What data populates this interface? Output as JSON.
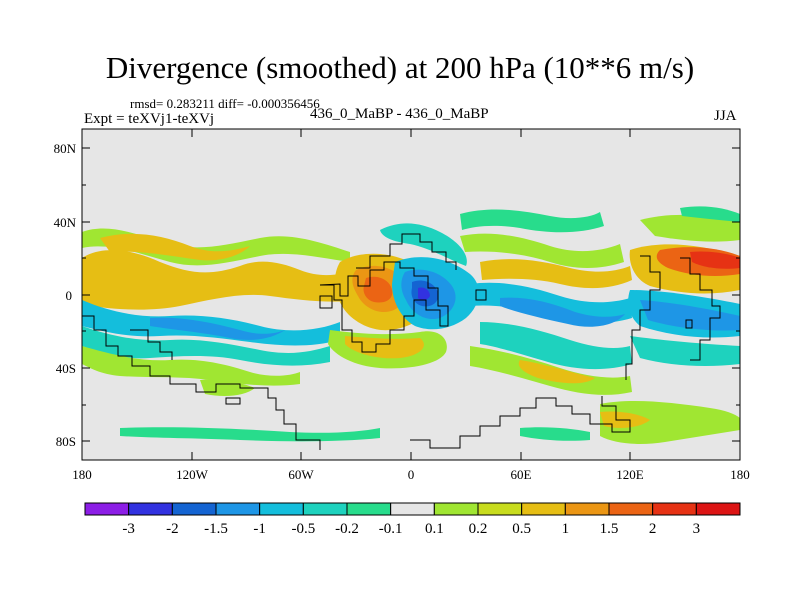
{
  "plot": {
    "title": "Divergence (smoothed) at 200 hPa (10**6 m/s)",
    "stats": "rmsd= 0.283211 diff= -0.000356456",
    "experiment": "Expt = teXVj1-teXVj",
    "comparison": "436_0_MaBP - 436_0_MaBP",
    "season": "JJA"
  },
  "map": {
    "lat_ticks": [
      "80N",
      "40N",
      "0",
      "40S",
      "80S"
    ],
    "lon_ticks": [
      "180",
      "120W",
      "60W",
      "0",
      "60E",
      "120E",
      "180"
    ],
    "lat_range": [
      -90,
      90
    ],
    "lon_range": [
      -180,
      180
    ],
    "background_color": "#e6e6e6",
    "coastline_color": "#000000"
  },
  "colorbar": {
    "labels": [
      "-3",
      "-2",
      "-1.5",
      "-1",
      "-0.5",
      "-0.2",
      "-0.1",
      "0.1",
      "0.2",
      "0.5",
      "1",
      "1.5",
      "2",
      "3"
    ],
    "colors": [
      "#8c1ee6",
      "#3232e0",
      "#1464d2",
      "#1e96e6",
      "#14bedc",
      "#1ed2be",
      "#28dc8c",
      "#e6e6e6",
      "#a0e632",
      "#c8dc1e",
      "#e6be14",
      "#eb9614",
      "#eb6414",
      "#e63214",
      "#dc1414"
    ]
  }
}
